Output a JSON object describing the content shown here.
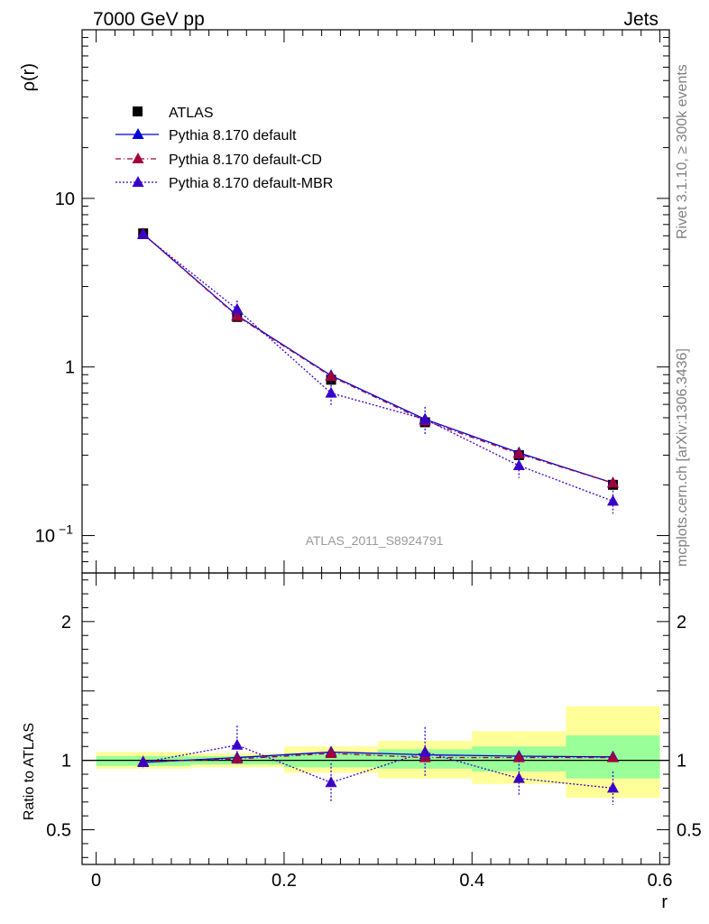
{
  "header": {
    "left": "7000 GeV pp",
    "right": "Jets"
  },
  "side_texts": {
    "rivet": "Rivet 3.1.10, ≥ 300k events",
    "mcplots": "mcplots.cern.ch [arXiv:1306.3436]"
  },
  "analysis_label": "ATLAS_2011_S8924791",
  "colors": {
    "atlas": "#000000",
    "default": "#0000d8",
    "cd": "#a3003a",
    "mbr": "#3a00c8",
    "band_yellow": "#ffff99",
    "band_green": "#99ff99"
  },
  "chart_data": [
    {
      "type": "line",
      "ylabel": "ρ(r)",
      "yscale": "log",
      "ylim": [
        0.06,
        100
      ],
      "xlim": [
        -0.015,
        0.61
      ],
      "yticks": [
        {
          "value": 0.1,
          "base": "10",
          "exp": "−1"
        },
        {
          "value": 1,
          "label": "1"
        },
        {
          "value": 10,
          "label": "10"
        }
      ],
      "legend": {
        "position": "top-left"
      },
      "series": [
        {
          "name": "ATLAS",
          "marker": "square",
          "x": [
            0.05,
            0.15,
            0.25,
            0.35,
            0.45,
            0.55
          ],
          "y": [
            6.2,
            1.98,
            0.84,
            0.47,
            0.3,
            0.2
          ]
        },
        {
          "name": "Pythia 8.170 default",
          "marker": "triangle",
          "line": "solid",
          "x": [
            0.05,
            0.15,
            0.25,
            0.35,
            0.45,
            0.55
          ],
          "y": [
            6.15,
            2.02,
            0.89,
            0.49,
            0.31,
            0.205
          ],
          "err": [
            0,
            0,
            0,
            0,
            0,
            0
          ]
        },
        {
          "name": "Pythia 8.170 default-CD",
          "marker": "triangle",
          "line": "dashdot",
          "x": [
            0.05,
            0.15,
            0.25,
            0.35,
            0.45,
            0.55
          ],
          "y": [
            6.15,
            2.0,
            0.88,
            0.48,
            0.305,
            0.205
          ],
          "err": [
            0,
            0,
            0,
            0,
            0,
            0
          ]
        },
        {
          "name": "Pythia 8.170 default-MBR",
          "marker": "triangle",
          "line": "dotted",
          "x": [
            0.05,
            0.15,
            0.25,
            0.35,
            0.45,
            0.55
          ],
          "y": [
            6.1,
            2.2,
            0.7,
            0.49,
            0.26,
            0.16
          ],
          "err": [
            0.2,
            0.28,
            0.12,
            0.09,
            0.04,
            0.025
          ]
        }
      ]
    },
    {
      "type": "line",
      "xlabel": "r",
      "ylabel": "Ratio to ATLAS",
      "ylim": [
        0.25,
        2.35
      ],
      "xlim": [
        -0.015,
        0.61
      ],
      "xticks": [
        {
          "value": 0,
          "label": "0"
        },
        {
          "value": 0.2,
          "label": "0.2"
        },
        {
          "value": 0.4,
          "label": "0.4"
        },
        {
          "value": 0.6,
          "label": "0.6"
        }
      ],
      "yticks": [
        {
          "value": 0.5,
          "label": "0.5"
        },
        {
          "value": 1,
          "label": "1"
        },
        {
          "value": 2,
          "label": "2"
        }
      ],
      "bands": [
        {
          "x0": 0.0,
          "x1": 0.1,
          "yellow": [
            0.94,
            1.06
          ],
          "green": [
            0.96,
            1.03
          ]
        },
        {
          "x0": 0.1,
          "x1": 0.2,
          "yellow": [
            0.95,
            1.05
          ],
          "green": [
            0.97,
            1.03
          ]
        },
        {
          "x0": 0.2,
          "x1": 0.3,
          "yellow": [
            0.91,
            1.1
          ],
          "green": [
            0.95,
            1.05
          ]
        },
        {
          "x0": 0.3,
          "x1": 0.4,
          "yellow": [
            0.87,
            1.14
          ],
          "green": [
            0.94,
            1.08
          ]
        },
        {
          "x0": 0.4,
          "x1": 0.5,
          "yellow": [
            0.83,
            1.21
          ],
          "green": [
            0.92,
            1.1
          ]
        },
        {
          "x0": 0.5,
          "x1": 0.6,
          "yellow": [
            0.73,
            1.39
          ],
          "green": [
            0.87,
            1.18
          ]
        }
      ],
      "series": [
        {
          "name": "Pythia 8.170 default",
          "x": [
            0.05,
            0.15,
            0.25,
            0.35,
            0.45,
            0.55
          ],
          "y": [
            0.985,
            1.02,
            1.06,
            1.04,
            1.03,
            1.025
          ],
          "err": [
            0,
            0,
            0,
            0,
            0,
            0
          ]
        },
        {
          "name": "Pythia 8.170 default-CD",
          "x": [
            0.05,
            0.15,
            0.25,
            0.35,
            0.45,
            0.55
          ],
          "y": [
            0.99,
            1.01,
            1.05,
            1.02,
            1.02,
            1.02
          ],
          "err": [
            0,
            0,
            0,
            0,
            0,
            0
          ]
        },
        {
          "name": "Pythia 8.170 default-MBR",
          "x": [
            0.05,
            0.15,
            0.25,
            0.35,
            0.45,
            0.55
          ],
          "y": [
            0.985,
            1.11,
            0.84,
            1.06,
            0.87,
            0.8
          ],
          "err": [
            0.04,
            0.14,
            0.14,
            0.18,
            0.13,
            0.12
          ]
        }
      ]
    }
  ]
}
